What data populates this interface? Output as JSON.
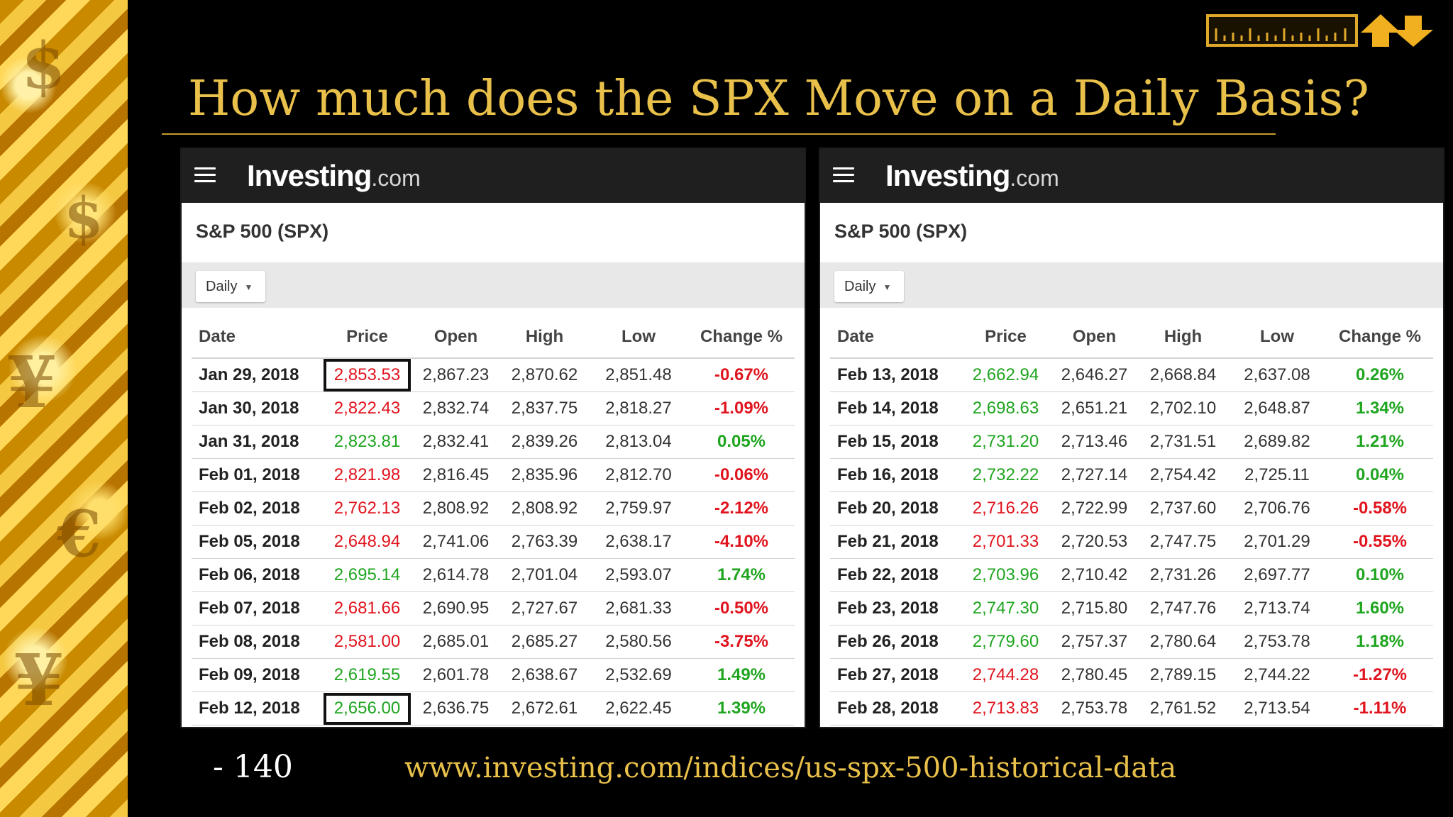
{
  "slide": {
    "title": "How much does the SPX Move on a Daily Basis?",
    "number": "- 140",
    "url": "www.investing.com/indices/us-spx-500-historical-data"
  },
  "colors": {
    "up": "#1fa51f",
    "down": "#e0141e",
    "title": "#e8c04a"
  },
  "brand": {
    "main": "Investing",
    "suffix": ".com"
  },
  "instrument": "S&P 500 (SPX)",
  "period": "Daily",
  "headers": [
    "Date",
    "Price",
    "Open",
    "High",
    "Low",
    "Change %"
  ],
  "left_table": [
    {
      "date": "Jan 29, 2018",
      "price": "2,853.53",
      "open": "2,867.23",
      "high": "2,870.62",
      "low": "2,851.48",
      "change": "-0.67%",
      "dir": "down"
    },
    {
      "date": "Jan 30, 2018",
      "price": "2,822.43",
      "open": "2,832.74",
      "high": "2,837.75",
      "low": "2,818.27",
      "change": "-1.09%",
      "dir": "down"
    },
    {
      "date": "Jan 31, 2018",
      "price": "2,823.81",
      "open": "2,832.41",
      "high": "2,839.26",
      "low": "2,813.04",
      "change": "0.05%",
      "dir": "up"
    },
    {
      "date": "Feb 01, 2018",
      "price": "2,821.98",
      "open": "2,816.45",
      "high": "2,835.96",
      "low": "2,812.70",
      "change": "-0.06%",
      "dir": "down"
    },
    {
      "date": "Feb 02, 2018",
      "price": "2,762.13",
      "open": "2,808.92",
      "high": "2,808.92",
      "low": "2,759.97",
      "change": "-2.12%",
      "dir": "down"
    },
    {
      "date": "Feb 05, 2018",
      "price": "2,648.94",
      "open": "2,741.06",
      "high": "2,763.39",
      "low": "2,638.17",
      "change": "-4.10%",
      "dir": "down"
    },
    {
      "date": "Feb 06, 2018",
      "price": "2,695.14",
      "open": "2,614.78",
      "high": "2,701.04",
      "low": "2,593.07",
      "change": "1.74%",
      "dir": "up"
    },
    {
      "date": "Feb 07, 2018",
      "price": "2,681.66",
      "open": "2,690.95",
      "high": "2,727.67",
      "low": "2,681.33",
      "change": "-0.50%",
      "dir": "down"
    },
    {
      "date": "Feb 08, 2018",
      "price": "2,581.00",
      "open": "2,685.01",
      "high": "2,685.27",
      "low": "2,580.56",
      "change": "-3.75%",
      "dir": "down"
    },
    {
      "date": "Feb 09, 2018",
      "price": "2,619.55",
      "open": "2,601.78",
      "high": "2,638.67",
      "low": "2,532.69",
      "change": "1.49%",
      "dir": "up"
    },
    {
      "date": "Feb 12, 2018",
      "price": "2,656.00",
      "open": "2,636.75",
      "high": "2,672.61",
      "low": "2,622.45",
      "change": "1.39%",
      "dir": "up"
    }
  ],
  "right_table": [
    {
      "date": "Feb 13, 2018",
      "price": "2,662.94",
      "open": "2,646.27",
      "high": "2,668.84",
      "low": "2,637.08",
      "change": "0.26%",
      "dir": "up"
    },
    {
      "date": "Feb 14, 2018",
      "price": "2,698.63",
      "open": "2,651.21",
      "high": "2,702.10",
      "low": "2,648.87",
      "change": "1.34%",
      "dir": "up"
    },
    {
      "date": "Feb 15, 2018",
      "price": "2,731.20",
      "open": "2,713.46",
      "high": "2,731.51",
      "low": "2,689.82",
      "change": "1.21%",
      "dir": "up"
    },
    {
      "date": "Feb 16, 2018",
      "price": "2,732.22",
      "open": "2,727.14",
      "high": "2,754.42",
      "low": "2,725.11",
      "change": "0.04%",
      "dir": "up"
    },
    {
      "date": "Feb 20, 2018",
      "price": "2,716.26",
      "open": "2,722.99",
      "high": "2,737.60",
      "low": "2,706.76",
      "change": "-0.58%",
      "dir": "down"
    },
    {
      "date": "Feb 21, 2018",
      "price": "2,701.33",
      "open": "2,720.53",
      "high": "2,747.75",
      "low": "2,701.29",
      "change": "-0.55%",
      "dir": "down"
    },
    {
      "date": "Feb 22, 2018",
      "price": "2,703.96",
      "open": "2,710.42",
      "high": "2,731.26",
      "low": "2,697.77",
      "change": "0.10%",
      "dir": "up"
    },
    {
      "date": "Feb 23, 2018",
      "price": "2,747.30",
      "open": "2,715.80",
      "high": "2,747.76",
      "low": "2,713.74",
      "change": "1.60%",
      "dir": "up"
    },
    {
      "date": "Feb 26, 2018",
      "price": "2,779.60",
      "open": "2,757.37",
      "high": "2,780.64",
      "low": "2,753.78",
      "change": "1.18%",
      "dir": "up"
    },
    {
      "date": "Feb 27, 2018",
      "price": "2,744.28",
      "open": "2,780.45",
      "high": "2,789.15",
      "low": "2,744.22",
      "change": "-1.27%",
      "dir": "down"
    },
    {
      "date": "Feb 28, 2018",
      "price": "2,713.83",
      "open": "2,753.78",
      "high": "2,761.52",
      "low": "2,713.54",
      "change": "-1.11%",
      "dir": "down"
    }
  ],
  "highlighted_prices": [
    "2,853.53",
    "2,656.00"
  ]
}
